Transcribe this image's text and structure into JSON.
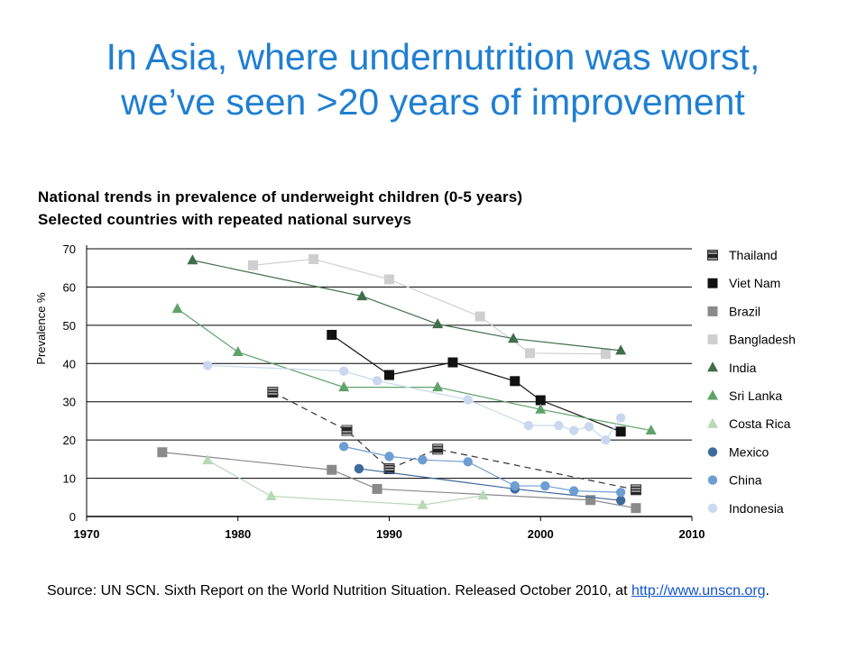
{
  "slide": {
    "title_line1": "In Asia, where undernutrition was worst,",
    "title_line2": "we’ve seen >20 years of improvement"
  },
  "chart_heading": {
    "line1": "National trends in prevalence of underweight children (0-5 years)",
    "line2": "Selected countries with repeated national surveys"
  },
  "source": {
    "text": "Source: UN SCN. Sixth Report on the World Nutrition Situation. Released October 2010, at ",
    "link": "http://www.unscn.org",
    "suffix": "."
  },
  "chart_data": {
    "type": "line",
    "ylabel": "Prevalence %",
    "xlim": [
      1970,
      2010
    ],
    "ylim": [
      0,
      70
    ],
    "x_ticks": [
      1970,
      1980,
      1990,
      2000,
      2010
    ],
    "y_ticks": [
      0,
      10,
      20,
      30,
      40,
      50,
      60,
      70
    ],
    "grid": "horizontal",
    "legend_position": "right",
    "series": [
      {
        "name": "Thailand",
        "color": "#333333",
        "marker": "hatched-square",
        "dashed": true,
        "points": [
          [
            1982.3,
            32.5
          ],
          [
            1987.2,
            22.5
          ],
          [
            1990.0,
            12.5
          ],
          [
            1993.2,
            17.6
          ],
          [
            2006.3,
            7.0
          ]
        ]
      },
      {
        "name": "Viet Nam",
        "color": "#111111",
        "marker": "square",
        "points": [
          [
            1986.2,
            47.5
          ],
          [
            1990.0,
            37.0
          ],
          [
            1994.2,
            40.3
          ],
          [
            1998.3,
            35.4
          ],
          [
            2000.0,
            30.4
          ],
          [
            2005.3,
            22.2
          ]
        ]
      },
      {
        "name": "Brazil",
        "color": "#8a8a8a",
        "marker": "square",
        "points": [
          [
            1975.0,
            16.8
          ],
          [
            1986.2,
            12.2
          ],
          [
            1989.2,
            7.2
          ],
          [
            2003.3,
            4.3
          ],
          [
            2006.3,
            2.2
          ]
        ]
      },
      {
        "name": "Bangladesh",
        "color": "#cfcfcf",
        "marker": "square",
        "points": [
          [
            1981.0,
            65.7
          ],
          [
            1985.0,
            67.3
          ],
          [
            1990.0,
            62.0
          ],
          [
            1996.0,
            52.3
          ],
          [
            1999.3,
            42.7
          ],
          [
            2004.3,
            42.5
          ]
        ]
      },
      {
        "name": "India",
        "color": "#3f6e4a",
        "marker": "triangle",
        "points": [
          [
            1977.0,
            67.0
          ],
          [
            1988.2,
            57.6
          ],
          [
            1993.2,
            50.3
          ],
          [
            1998.2,
            46.5
          ],
          [
            2005.3,
            43.4
          ]
        ]
      },
      {
        "name": "Sri Lanka",
        "color": "#5fa36b",
        "marker": "triangle",
        "points": [
          [
            1976.0,
            54.3
          ],
          [
            1980.0,
            43.0
          ],
          [
            1987.0,
            33.8
          ],
          [
            1993.2,
            33.8
          ],
          [
            2000.0,
            28.0
          ],
          [
            2007.3,
            22.5
          ]
        ]
      },
      {
        "name": "Costa Rica",
        "color": "#b9d8b7",
        "marker": "triangle",
        "points": [
          [
            1978.0,
            14.7
          ],
          [
            1982.2,
            5.3
          ],
          [
            1992.2,
            3.0
          ],
          [
            1996.2,
            5.5
          ]
        ]
      },
      {
        "name": "Mexico",
        "color": "#3e6a9c",
        "marker": "circle",
        "points": [
          [
            1988.0,
            12.5
          ],
          [
            1998.3,
            7.2
          ],
          [
            2005.3,
            4.2
          ]
        ]
      },
      {
        "name": "China",
        "color": "#6e9dd3",
        "marker": "circle",
        "points": [
          [
            1987.0,
            18.3
          ],
          [
            1990.0,
            15.7
          ],
          [
            1992.2,
            14.8
          ],
          [
            1995.2,
            14.3
          ],
          [
            1998.3,
            8.0
          ],
          [
            2000.3,
            8.0
          ],
          [
            2002.2,
            6.7
          ],
          [
            2005.3,
            6.3
          ]
        ]
      },
      {
        "name": "Indonesia",
        "color": "#c9d8ee",
        "marker": "circle",
        "points": [
          [
            1978.0,
            39.5
          ],
          [
            1987.0,
            38.0
          ],
          [
            1989.2,
            35.5
          ],
          [
            1995.2,
            30.5
          ],
          [
            1999.2,
            23.8
          ],
          [
            2001.2,
            23.8
          ],
          [
            2002.2,
            22.5
          ],
          [
            2003.2,
            23.5
          ],
          [
            2004.3,
            20.0
          ],
          [
            2005.3,
            25.8
          ]
        ]
      }
    ]
  }
}
